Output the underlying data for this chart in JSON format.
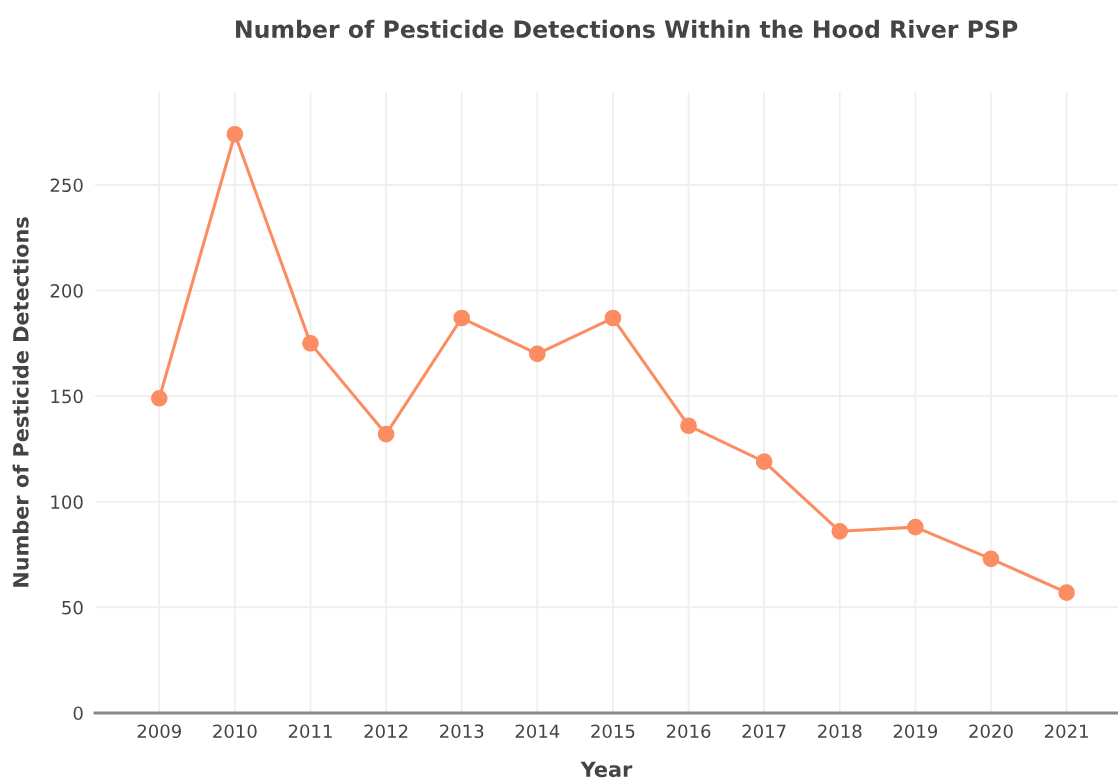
{
  "chart_data": {
    "type": "line",
    "title": "Number of Pesticide Detections Within the Hood River PSP",
    "xlabel": "Year",
    "ylabel": "Number of Pesticide Detections",
    "categories": [
      "2009",
      "2010",
      "2011",
      "2012",
      "2013",
      "2014",
      "2015",
      "2016",
      "2017",
      "2018",
      "2019",
      "2020",
      "2021"
    ],
    "series": [
      {
        "color": "#fc8d62",
        "values": [
          149,
          274,
          175,
          132,
          187,
          170,
          187,
          136,
          119,
          86,
          88,
          73,
          57
        ]
      }
    ],
    "ylim": [
      0,
      294
    ],
    "yticks": [
      0,
      50,
      100,
      150,
      200,
      250
    ],
    "grid": true,
    "marker": "circle",
    "line_style": "solid",
    "legend": false
  }
}
